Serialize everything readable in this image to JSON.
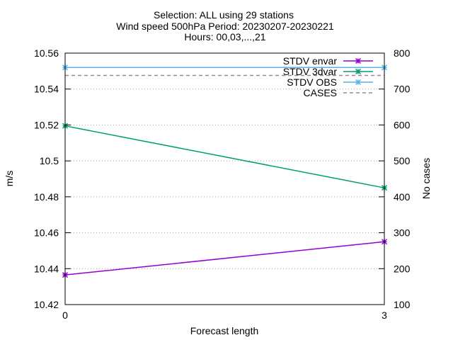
{
  "chart_data": {
    "type": "line",
    "title_lines": [
      "Selection: ALL using    29 stations",
      "Wind speed 500hPa   Period: 20230207-20230221",
      "Hours: 00,03,...,21"
    ],
    "xlabel": "Forecast length",
    "ylabel": "m/s",
    "y2label": "No cases",
    "x": [
      0,
      3
    ],
    "x_ticks": [
      "0",
      "3"
    ],
    "xlim": [
      0,
      3
    ],
    "ylim": [
      10.42,
      10.56
    ],
    "y_ticks": [
      "10.42",
      "10.44",
      "10.46",
      "10.48",
      "10.5",
      "10.52",
      "10.54",
      "10.56"
    ],
    "y2lim": [
      100,
      800
    ],
    "y2_ticks": [
      "100",
      "200",
      "300",
      "400",
      "500",
      "600",
      "700",
      "800"
    ],
    "grid": true,
    "legend_position": "top-right",
    "series": [
      {
        "name": "STDV envar",
        "axis": "y",
        "values": [
          10.4365,
          10.455
        ],
        "color": "#9400d3",
        "marker": "star"
      },
      {
        "name": "STDV 3dvar",
        "axis": "y",
        "values": [
          10.5195,
          10.485
        ],
        "color": "#009e73",
        "marker": "star"
      },
      {
        "name": "STDV OBS",
        "axis": "y",
        "values": [
          10.552,
          10.552
        ],
        "color": "#56b4e9",
        "marker": "star"
      },
      {
        "name": "CASES",
        "axis": "y2",
        "values": [
          738,
          738
        ],
        "color": "#a080a0",
        "dashed": true
      }
    ]
  }
}
